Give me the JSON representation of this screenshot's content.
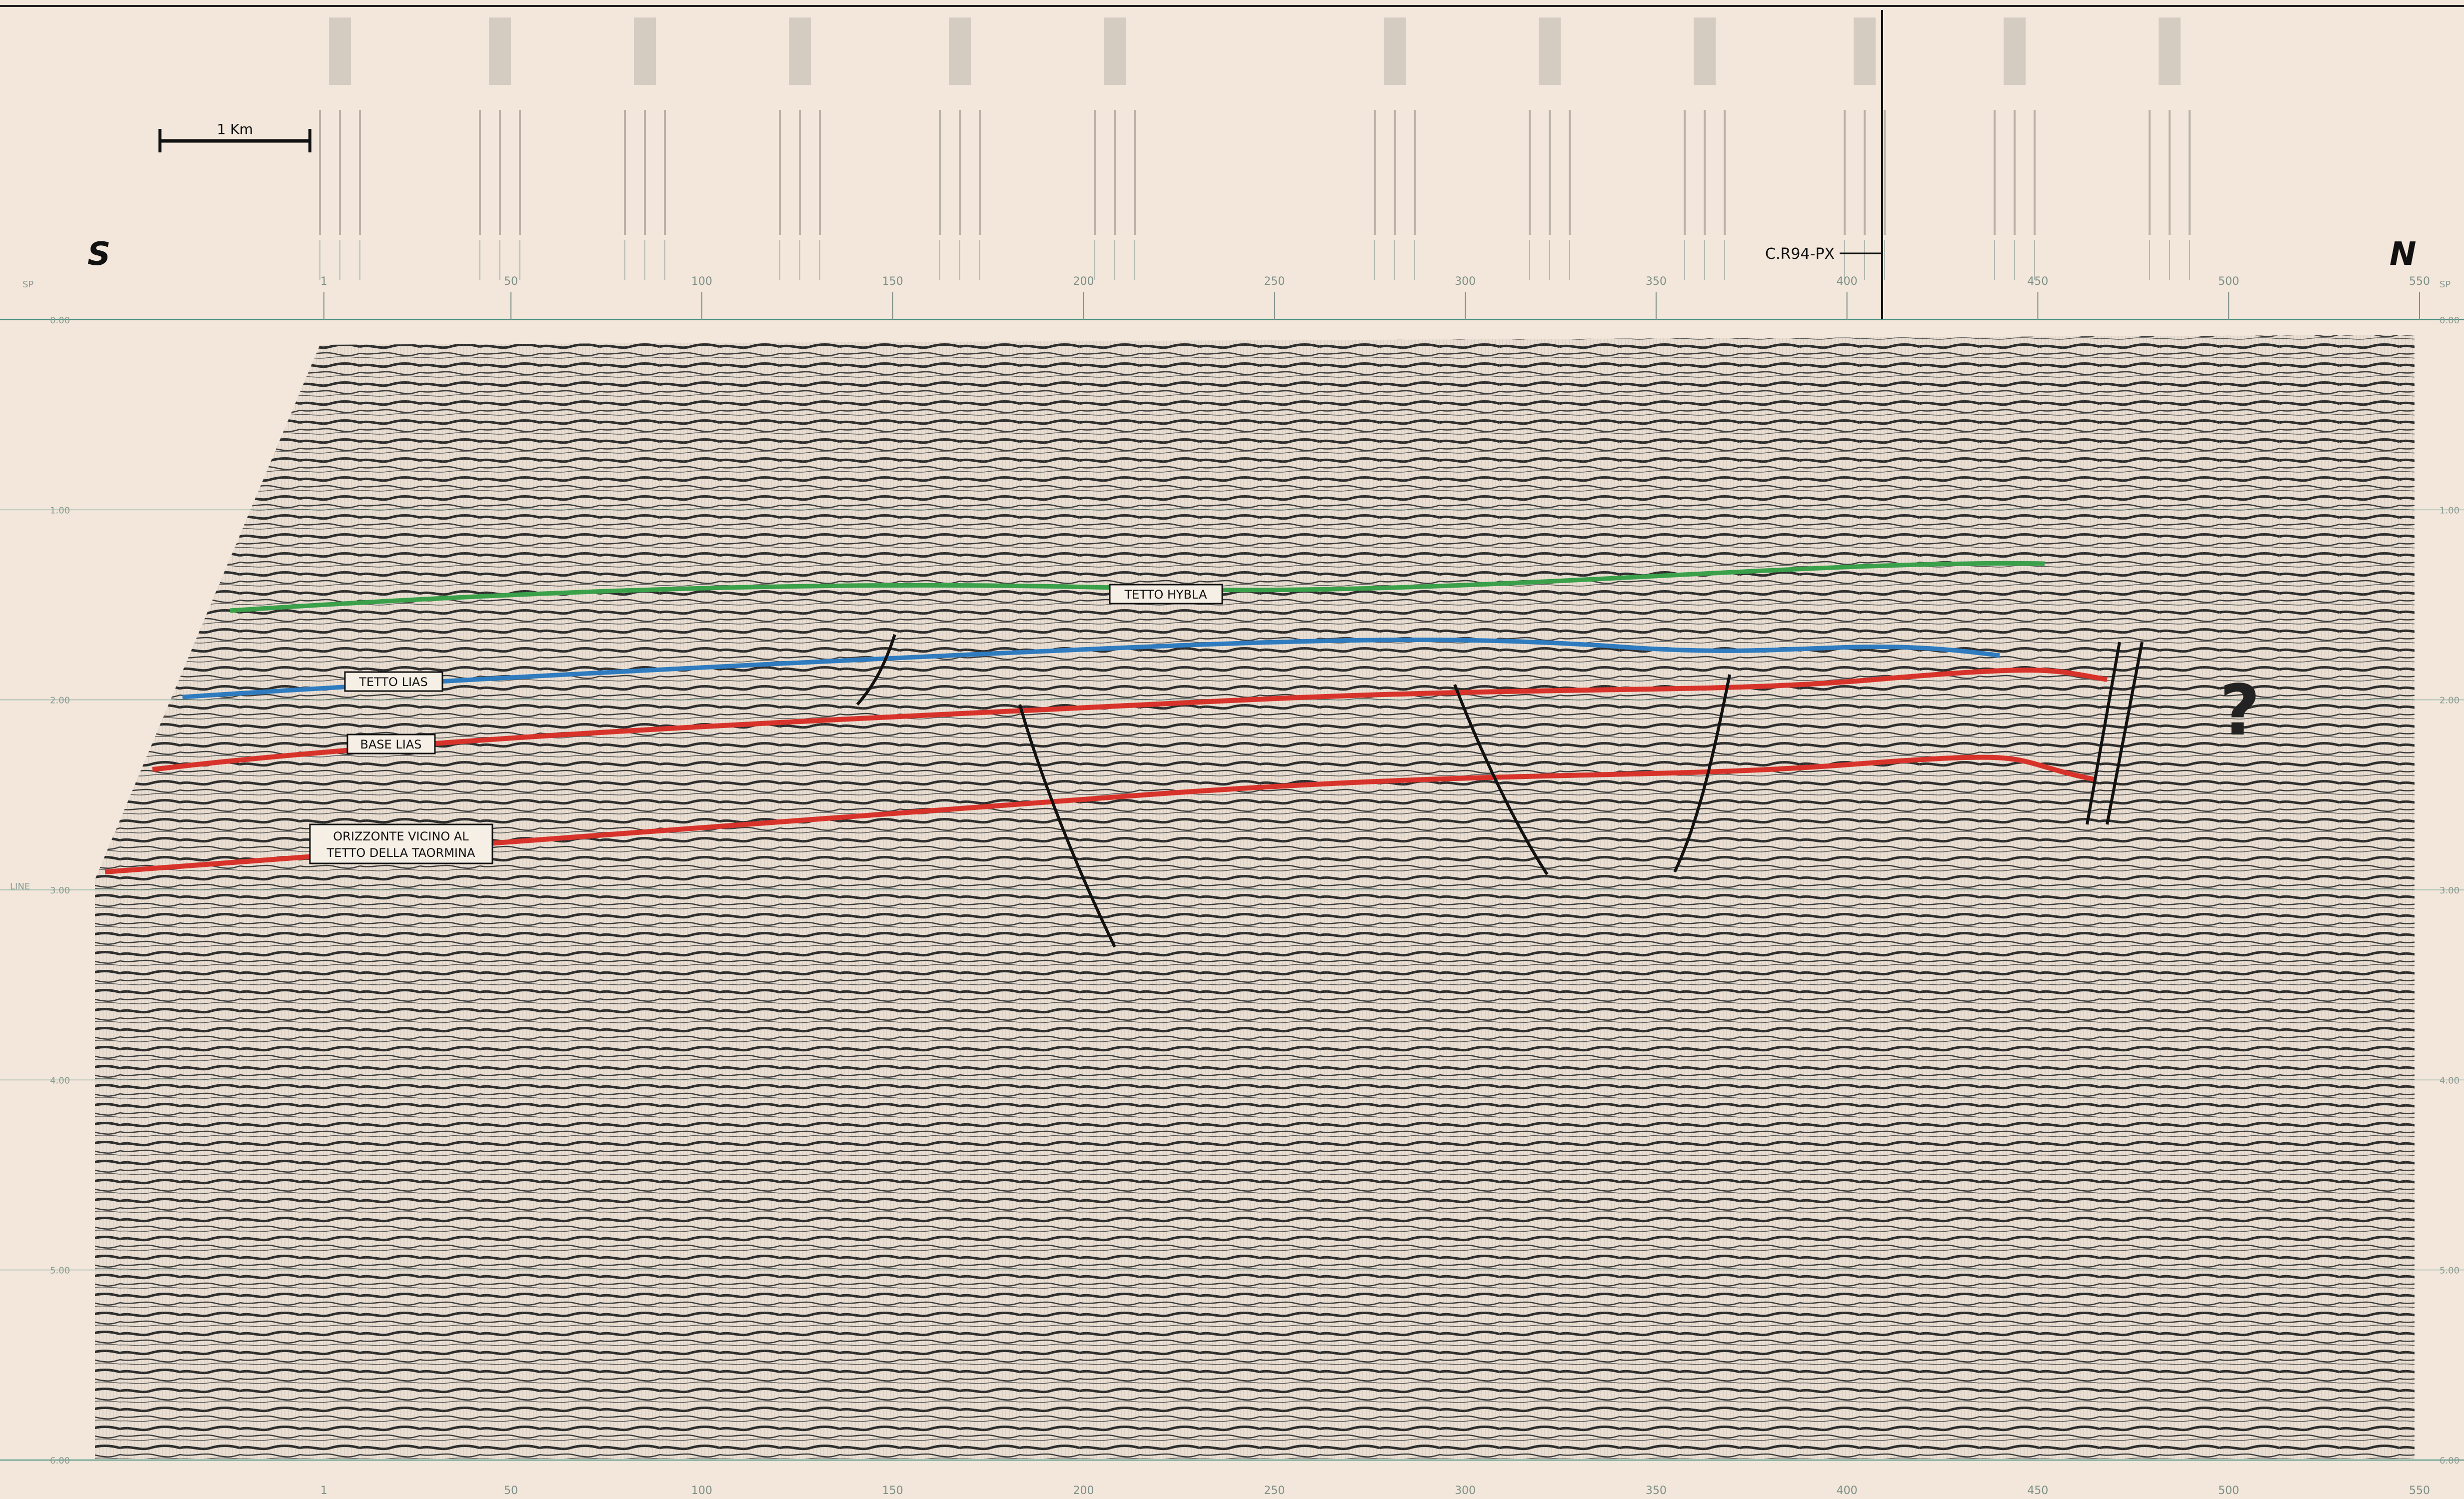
{
  "scale_bar": {
    "label": "1 Km"
  },
  "directions": {
    "left": "S",
    "right": "N"
  },
  "crossing_line": {
    "label": "C.R94-PX"
  },
  "sp_axis": {
    "top_ticks": [
      "1",
      "50",
      "100",
      "150",
      "200",
      "250",
      "300",
      "350",
      "400",
      "450",
      "500",
      "550"
    ],
    "bottom_ticks": [
      "1",
      "50",
      "100",
      "150",
      "200",
      "250",
      "300",
      "350",
      "400",
      "450",
      "500",
      "550"
    ],
    "left_tag": "SP",
    "right_tag": "SP"
  },
  "time_axis": {
    "ticks": [
      "0.00",
      "1.00",
      "2.00",
      "3.00",
      "4.00",
      "5.00",
      "6.00"
    ],
    "left_tag": "LINE"
  },
  "horizons": [
    {
      "label": "TETTO HYBLA",
      "color": "#3aa04a"
    },
    {
      "label": "TETTO LIAS",
      "color": "#2e7bbf"
    },
    {
      "label": "BASE LIAS",
      "color": "#d8332a"
    },
    {
      "label_line1": "ORIZZONTE VICINO AL",
      "label_line2": "TETTO DELLA TAORMINA",
      "color": "#d8332a"
    }
  ],
  "question_mark": "?"
}
